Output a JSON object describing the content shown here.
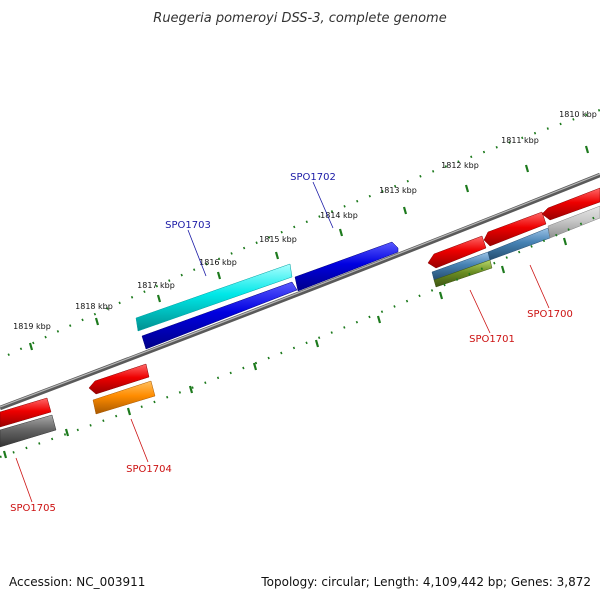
{
  "title": "Ruegeria pomeroyi DSS-3, complete genome",
  "footer": {
    "accession": "Accession: NC_003911",
    "summary": "Topology: circular; Length: 4,109,442 bp; Genes: 3,872"
  },
  "scale_labels": [
    "1810 kbp",
    "1811 kbp",
    "1812 kbp",
    "1813 kbp",
    "1814 kbp",
    "1815 kbp",
    "1816 kbp",
    "1817 kbp",
    "1818 kbp",
    "1819 kbp"
  ],
  "gene_labels": [
    {
      "name": "SPO1702",
      "strand": "forward",
      "color": "#1a1aa6"
    },
    {
      "name": "SPO1703",
      "strand": "forward",
      "color": "#1a1aa6"
    },
    {
      "name": "SPO1701",
      "strand": "reverse",
      "color": "#cc1111"
    },
    {
      "name": "SPO1700",
      "strand": "reverse",
      "color": "#cc1111"
    },
    {
      "name": "SPO1704",
      "strand": "reverse",
      "color": "#cc1111"
    },
    {
      "name": "SPO1705",
      "strand": "reverse",
      "color": "#cc1111"
    }
  ],
  "colors": {
    "cds": "#dd0000",
    "gene_forward": "#0000dd",
    "rrna": "#00e0e0",
    "trna": "#ff8c00",
    "misc": "#6b8e23",
    "other": "#4682b4",
    "backbone": "#777777",
    "tick": "#1d7a1d"
  }
}
